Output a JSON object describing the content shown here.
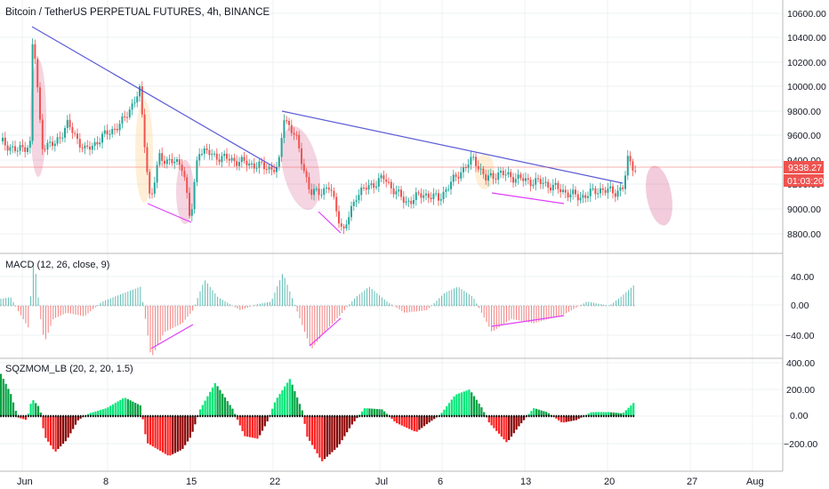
{
  "header": {
    "symbol_title": "Bitcoin / TetherUS PERPETUAL FUTURES, 4h, BINANCE"
  },
  "price_pane": {
    "y_ticks": [
      "10600.00",
      "10400.00",
      "10200.00",
      "10000.00",
      "9800.00",
      "9600.00",
      "9400.00",
      "9200.00",
      "9000.00",
      "8800.00"
    ],
    "last_price_label": "9338.27",
    "countdown_label": "01:03:20",
    "colors": {
      "up": "#26a69a",
      "down": "#ef5350",
      "trendline": "#5b5bd6",
      "pattern_line": "#e040fb",
      "price_line": "#ef5350",
      "ellipse_red": "#c2185b",
      "ellipse_orange": "#ffb74d"
    }
  },
  "macd_pane": {
    "title": "MACD (12, 26, close, 9)",
    "y_ticks": [
      "40.00",
      "0.00",
      "−40.00"
    ],
    "colors": {
      "pos": "#26a69a",
      "neg": "#ef5350",
      "pattern_line": "#e040fb"
    }
  },
  "sqz_pane": {
    "title": "SQZMOM_LB (20, 2, 20, 1.5)",
    "y_ticks": [
      "400.00",
      "200.00",
      "0.00",
      "−200.00"
    ],
    "colors": {
      "pos_bright": "#00e676",
      "pos_dark": "#00a040",
      "neg_bright": "#ff1f1f",
      "neg_dark": "#8b0000",
      "zero_dot": "#000000"
    }
  },
  "x_axis": {
    "ticks": [
      "Jun",
      "8",
      "15",
      "22",
      "Jul",
      "6",
      "13",
      "20",
      "27",
      "Aug"
    ]
  },
  "chart_data": {
    "type": "candlestick",
    "title": "Bitcoin / TetherUS PERPETUAL FUTURES, 4h, BINANCE",
    "interval": "4h",
    "ylim": [
      8700,
      10700
    ],
    "key_points": [
      {
        "label": "High near Jun 1",
        "price": 10490
      },
      {
        "label": "High near Jun 10",
        "price": 9990
      },
      {
        "label": "Low near Jun 15",
        "price": 8910
      },
      {
        "label": "High near Jun 22",
        "price": 9790
      },
      {
        "label": "Low near Jun 27",
        "price": 8830
      },
      {
        "label": "High near Jul 8",
        "price": 9440
      },
      {
        "label": "Latest high near Jul 21",
        "price": 9430
      }
    ],
    "last_price": 9338.27,
    "trendlines": [
      {
        "from_price": 10490,
        "to_price": 9350,
        "period": "Jun 1 – Jun 22"
      },
      {
        "from_price": 9790,
        "to_price": 9200,
        "period": "Jun 22 – Jul 20"
      }
    ],
    "macd": {
      "params": "12, 26, close, 9",
      "range": [
        -60,
        55
      ]
    },
    "sqzmom": {
      "params": "20, 2, 20, 1.5",
      "range": [
        -330,
        420
      ]
    }
  }
}
